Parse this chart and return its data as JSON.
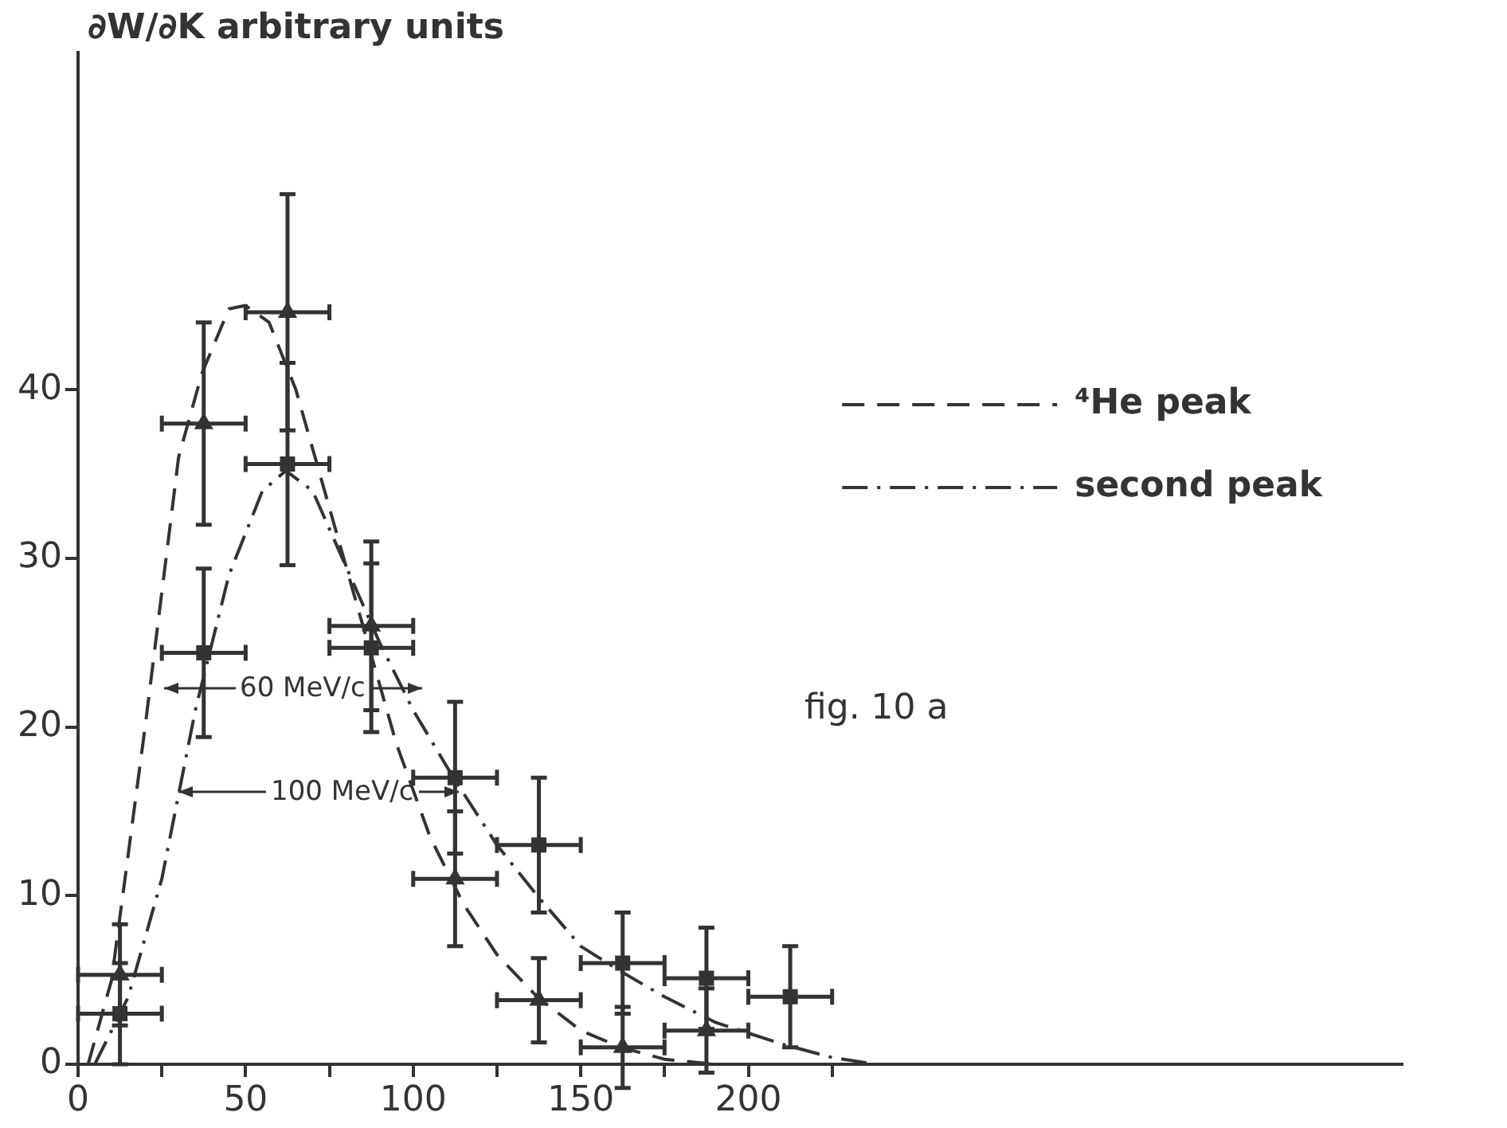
{
  "chart_data": {
    "type": "scatter",
    "ylabel": "∂W/∂K arbitrary units",
    "annotations": [
      "fig. 10 a",
      "60 MeV/c",
      "100 MeV/c"
    ],
    "xlim": [
      0,
      395
    ],
    "ylim": [
      0,
      60
    ],
    "xticks": [
      {
        "value": 0,
        "label": "0"
      },
      {
        "value": 25,
        "label": null
      },
      50,
      {
        "value": 75,
        "label": null
      },
      100,
      {
        "value": 125,
        "label": null
      },
      150,
      {
        "value": 175,
        "label": null
      },
      200,
      {
        "value": 225,
        "label": null
      }
    ],
    "yticks": [
      0,
      10,
      20,
      30,
      40
    ],
    "grid": false,
    "legend": "top right",
    "series": [
      {
        "name": "⁴He peak",
        "type": "line",
        "color": "#333333",
        "line_style": "dashed",
        "marker": "none",
        "x": [
          3,
          10,
          20,
          30,
          37,
          45,
          50,
          57,
          65,
          75,
          85,
          95,
          105,
          115,
          125,
          137,
          150,
          162,
          175,
          190
        ],
        "values": [
          0,
          5,
          20,
          36,
          41,
          44.8,
          45,
          44,
          40,
          33,
          26,
          19,
          13.5,
          9.5,
          6.5,
          4,
          2,
          1,
          0.3,
          0
        ]
      },
      {
        "name": "second peak",
        "type": "line",
        "color": "#333333",
        "line_style": "dashdot",
        "marker": "none",
        "x": [
          5,
          15,
          25,
          35,
          45,
          55,
          62,
          70,
          80,
          90,
          100,
          112,
          125,
          137,
          150,
          162,
          175,
          190,
          210,
          225,
          238
        ],
        "values": [
          0,
          4,
          11,
          21,
          29,
          34,
          35.2,
          34,
          29.5,
          25,
          21,
          17,
          13,
          10,
          7,
          5.5,
          4,
          2.5,
          1.2,
          0.4,
          0
        ]
      },
      {
        "type": "scatter",
        "color": "#333333",
        "marker": "triangle",
        "x": [
          12.5,
          37.5,
          62.5,
          87.5,
          112.5,
          137.5,
          162.5,
          187.5
        ],
        "values": [
          5.3,
          38,
          44.6,
          26,
          11,
          3.8,
          1,
          2
        ],
        "errors": [
          3,
          6,
          7,
          5,
          4,
          2.5,
          2.4,
          2.5
        ],
        "xerrors": [
          12.5,
          12.5,
          12.5,
          12.5,
          12.5,
          12.5,
          12.5,
          12.5
        ]
      },
      {
        "type": "scatter",
        "color": "#333333",
        "marker": "square",
        "x": [
          12.5,
          37.5,
          62.5,
          87.5,
          112.5,
          137.5,
          162.5,
          187.5,
          212.5
        ],
        "values": [
          3,
          24.4,
          35.6,
          24.7,
          17,
          13,
          6,
          5.1,
          4
        ],
        "errors": [
          3,
          5,
          6,
          5,
          4.5,
          4,
          3,
          3,
          3
        ],
        "xerrors": [
          12.5,
          12.5,
          12.5,
          12.5,
          12.5,
          12.5,
          12.5,
          12.5,
          12.5
        ]
      }
    ]
  }
}
